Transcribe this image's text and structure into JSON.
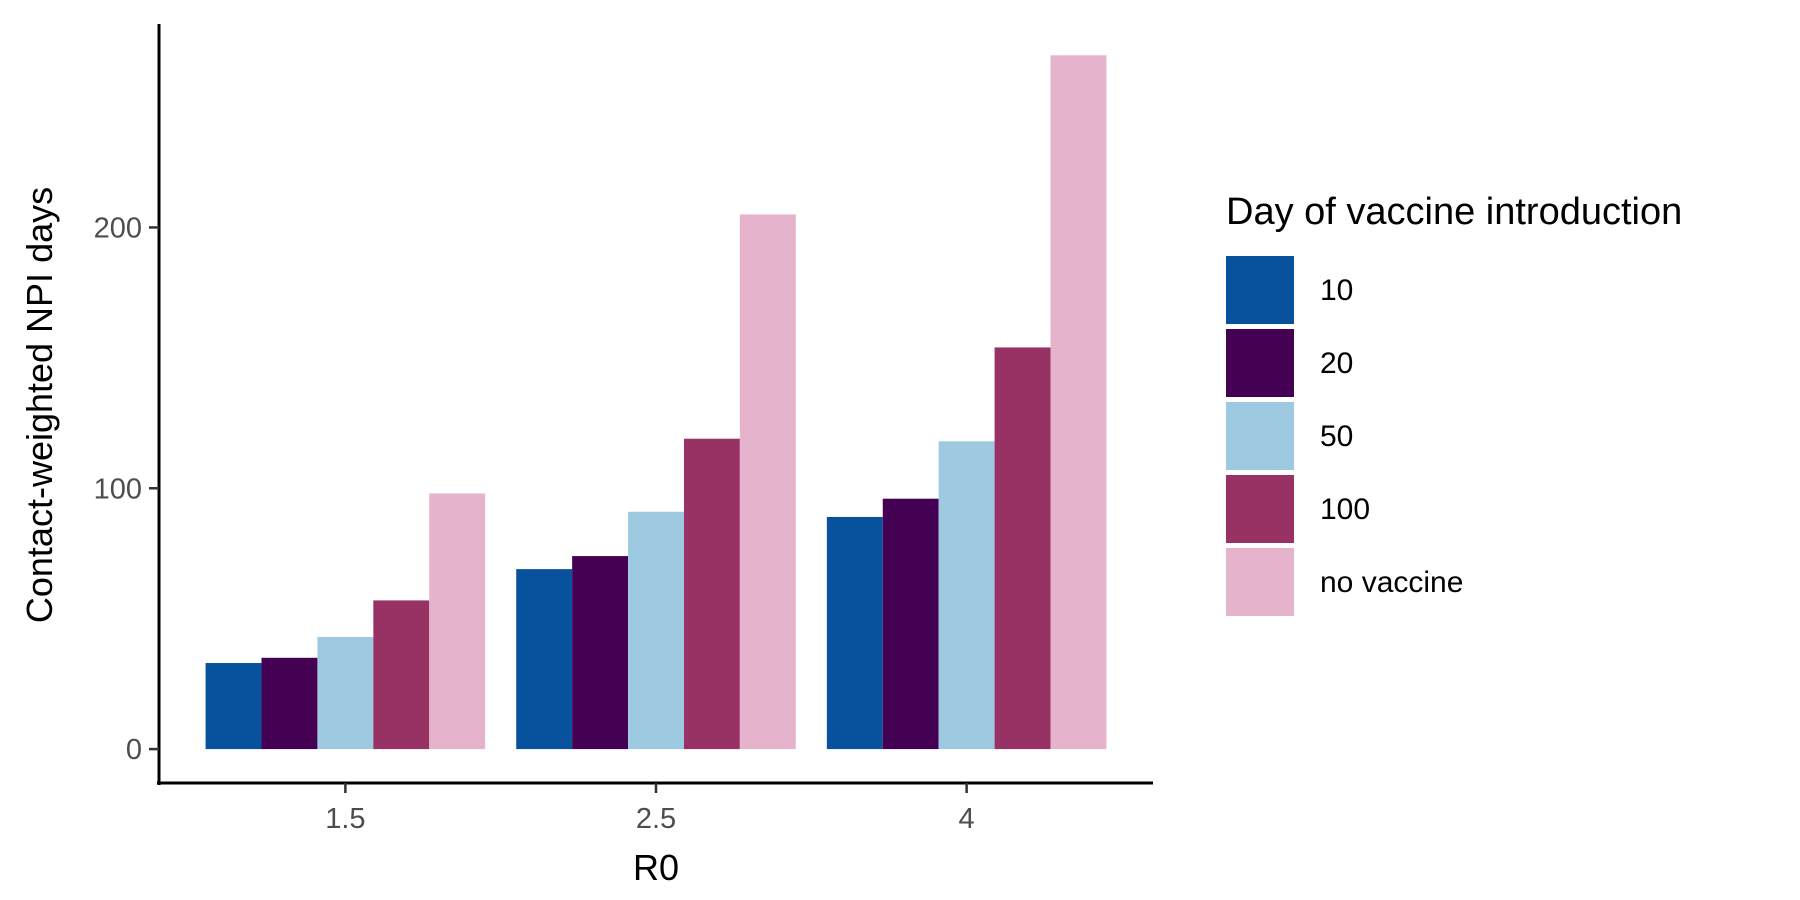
{
  "chart_data": {
    "type": "bar",
    "title": "",
    "xlabel": "R0",
    "ylabel": "Contact-weighted NPI days",
    "categories": [
      "1.5",
      "2.5",
      "4"
    ],
    "ylim": [
      -13,
      278
    ],
    "yticks": [
      0,
      100,
      200
    ],
    "legend_title": "Day of vaccine introduction",
    "legend_position": "right",
    "grid": false,
    "series": [
      {
        "name": "10",
        "color": "#08519c",
        "values": [
          33,
          69,
          89
        ]
      },
      {
        "name": "20",
        "color": "#440154",
        "values": [
          35,
          74,
          96
        ]
      },
      {
        "name": "50",
        "color": "#9ecae1",
        "values": [
          43,
          91,
          118
        ]
      },
      {
        "name": "100",
        "color": "#993264",
        "values": [
          57,
          119,
          154
        ]
      },
      {
        "name": "no vaccine",
        "color": "#e6b3cc",
        "values": [
          98,
          205,
          266
        ]
      }
    ]
  }
}
